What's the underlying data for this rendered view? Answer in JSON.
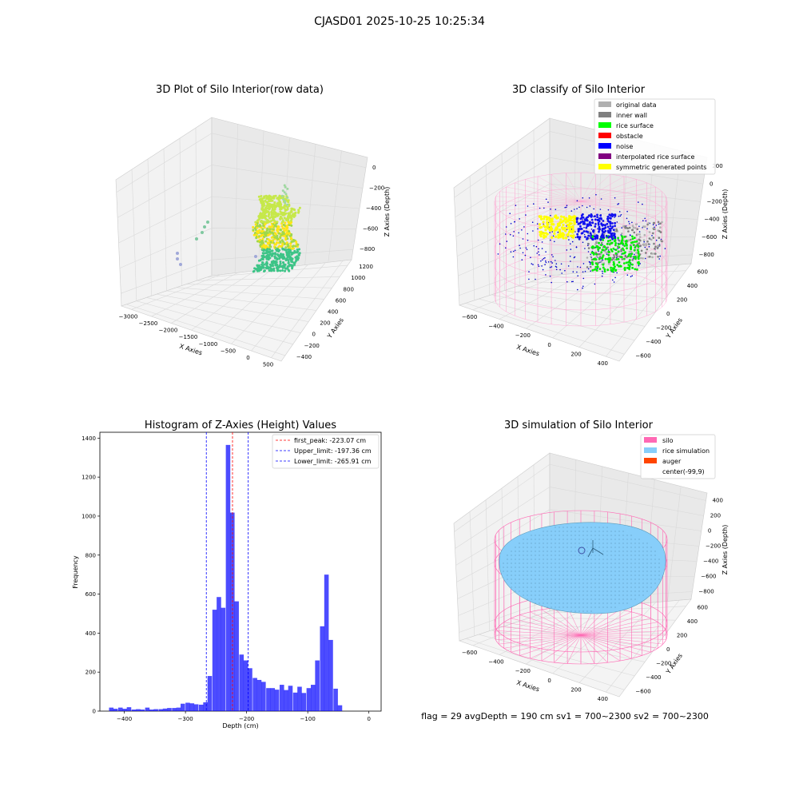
{
  "suptitle": "CJASD01 2025-10-25 10:25:34",
  "footer": "flag = 29  avgDepth = 190 cm  sv1 = 700~2300  sv2 = 700~2300",
  "colors": {
    "bar": "#0000ff",
    "silo": "#ff69b4",
    "rice_sim": "#87cefa",
    "auger": "#ff4500"
  },
  "chart_data": [
    {
      "type": "scatter3d",
      "title": "3D Plot of Silo Interior(row data)",
      "xlabel": "X Axies",
      "ylabel": "Y Axies",
      "zlabel": "Z Axies (Depth)",
      "xticks": [
        "−3000",
        "−2500",
        "−2000",
        "−1500",
        "−1000",
        "−500",
        "0",
        "500"
      ],
      "yticks": [
        "−400",
        "−200",
        "0",
        "200",
        "400",
        "600",
        "800",
        "1000",
        "1200"
      ],
      "zticks": [
        "0",
        "−200",
        "−400",
        "−600",
        "−800"
      ]
    },
    {
      "type": "scatter3d",
      "title": "3D classify of Silo Interior",
      "xlabel": "X Axies",
      "ylabel": "Y Axies",
      "zlabel": "Z Axies (Depth)",
      "xticks": [
        "−600",
        "−400",
        "−200",
        "0",
        "200",
        "400"
      ],
      "yticks": [
        "−600",
        "−400",
        "−200",
        "0",
        "200",
        "400",
        "600"
      ],
      "zticks": [
        "200",
        "0",
        "−200",
        "−400",
        "−600",
        "−800"
      ],
      "legend": [
        {
          "name": "original data",
          "color": "#b0b0b0"
        },
        {
          "name": "inner wall",
          "color": "#808080"
        },
        {
          "name": "rice surface",
          "color": "#00ff00"
        },
        {
          "name": "obstacle",
          "color": "#ff0000"
        },
        {
          "name": "noise",
          "color": "#0000ff"
        },
        {
          "name": "interpolated rice surface",
          "color": "#800080"
        },
        {
          "name": "symmetric generated points",
          "color": "#ffff00"
        }
      ]
    },
    {
      "type": "bar",
      "title": "Histogram of Z-Axies (Height) Values",
      "xlabel": "Depth (cm)",
      "ylabel": "Frequency",
      "xlim": [
        -440,
        20
      ],
      "ylim": [
        0,
        1430
      ],
      "xticks": [
        -400,
        -300,
        -200,
        -100,
        0
      ],
      "yticks": [
        0,
        200,
        400,
        600,
        800,
        1000,
        1200,
        1400
      ],
      "bin_width": 7.3,
      "bins": [
        {
          "x": -425,
          "y": 18
        },
        {
          "x": -418,
          "y": 12
        },
        {
          "x": -410,
          "y": 18
        },
        {
          "x": -403,
          "y": 12
        },
        {
          "x": -396,
          "y": 20
        },
        {
          "x": -388,
          "y": 8
        },
        {
          "x": -381,
          "y": 10
        },
        {
          "x": -374,
          "y": 8
        },
        {
          "x": -366,
          "y": 18
        },
        {
          "x": -359,
          "y": 8
        },
        {
          "x": -352,
          "y": 10
        },
        {
          "x": -344,
          "y": 10
        },
        {
          "x": -337,
          "y": 13
        },
        {
          "x": -330,
          "y": 16
        },
        {
          "x": -322,
          "y": 16
        },
        {
          "x": -315,
          "y": 18
        },
        {
          "x": -308,
          "y": 38
        },
        {
          "x": -300,
          "y": 43
        },
        {
          "x": -293,
          "y": 40
        },
        {
          "x": -286,
          "y": 35
        },
        {
          "x": -278,
          "y": 33
        },
        {
          "x": -271,
          "y": 45
        },
        {
          "x": -264,
          "y": 180
        },
        {
          "x": -256,
          "y": 520
        },
        {
          "x": -249,
          "y": 585
        },
        {
          "x": -242,
          "y": 530
        },
        {
          "x": -234,
          "y": 1365
        },
        {
          "x": -227,
          "y": 1018
        },
        {
          "x": -220,
          "y": 563
        },
        {
          "x": -212,
          "y": 290
        },
        {
          "x": -205,
          "y": 260
        },
        {
          "x": -198,
          "y": 220
        },
        {
          "x": -190,
          "y": 170
        },
        {
          "x": -183,
          "y": 160
        },
        {
          "x": -176,
          "y": 150
        },
        {
          "x": -168,
          "y": 118
        },
        {
          "x": -161,
          "y": 118
        },
        {
          "x": -154,
          "y": 110
        },
        {
          "x": -146,
          "y": 135
        },
        {
          "x": -139,
          "y": 108
        },
        {
          "x": -132,
          "y": 130
        },
        {
          "x": -124,
          "y": 95
        },
        {
          "x": -117,
          "y": 125
        },
        {
          "x": -110,
          "y": 93
        },
        {
          "x": -102,
          "y": 118
        },
        {
          "x": -95,
          "y": 135
        },
        {
          "x": -88,
          "y": 260
        },
        {
          "x": -80,
          "y": 435
        },
        {
          "x": -73,
          "y": 700
        },
        {
          "x": -66,
          "y": 365
        },
        {
          "x": -58,
          "y": 115
        },
        {
          "x": -51,
          "y": 30
        }
      ],
      "vlines": [
        {
          "name": "first_peak: -223.07 cm",
          "x": -223.07,
          "color": "#ff0000"
        },
        {
          "name": "Upper_limit: -197.36 cm",
          "x": -197.36,
          "color": "#0000ff"
        },
        {
          "name": "Lower_limit: -265.91 cm",
          "x": -265.91,
          "color": "#0000ff"
        }
      ],
      "legend_position": "top-right"
    },
    {
      "type": "surface3d",
      "title": "3D simulation of Silo Interior",
      "xlabel": "X Axies",
      "ylabel": "Y Axies",
      "zlabel": "Z Axies (Depth)",
      "xticks": [
        "−600",
        "−400",
        "−200",
        "0",
        "200",
        "400"
      ],
      "yticks": [
        "−600",
        "−400",
        "−200",
        "0",
        "200",
        "400",
        "600"
      ],
      "zticks": [
        "400",
        "200",
        "0",
        "−200",
        "−400",
        "−600",
        "−800"
      ],
      "legend": [
        {
          "name": "silo",
          "color": "#ff69b4"
        },
        {
          "name": "rice simulation",
          "color": "#87cefa"
        },
        {
          "name": "auger",
          "color": "#ff4500"
        },
        {
          "name": "center(-99,9)",
          "color": ""
        }
      ]
    }
  ]
}
